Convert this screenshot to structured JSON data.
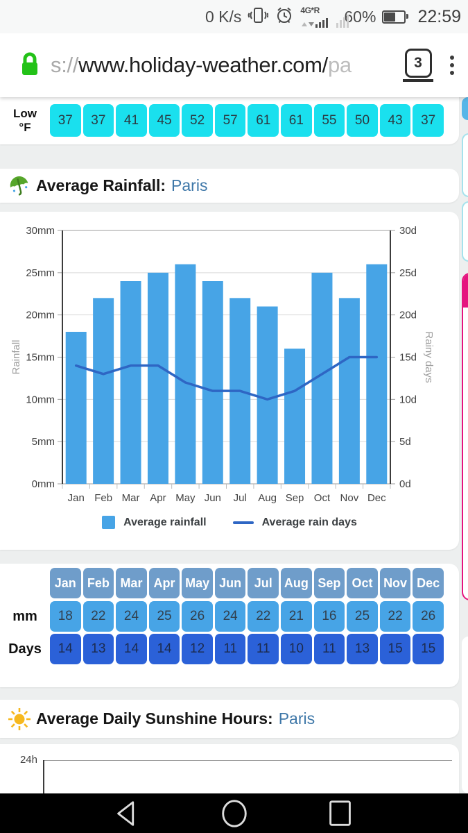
{
  "status_bar": {
    "network_speed": "0 K/s",
    "network_type_label": "4G*R",
    "battery_percent": "60%",
    "time": "22:59"
  },
  "address_bar": {
    "url_scheme_fragment": "s://",
    "url_host": "www.holiday-weather.com/",
    "url_path_fragment": "pa",
    "tab_count": "3"
  },
  "temp_table": {
    "row_label_top": "Low",
    "row_label_bottom": "°F",
    "values": [
      "37",
      "37",
      "41",
      "45",
      "52",
      "57",
      "61",
      "61",
      "55",
      "50",
      "43",
      "37"
    ]
  },
  "rainfall_section": {
    "title": "Average Rainfall:",
    "city": "Paris"
  },
  "chart_data": {
    "type": "bar",
    "categories": [
      "Jan",
      "Feb",
      "Mar",
      "Apr",
      "May",
      "Jun",
      "Jul",
      "Aug",
      "Sep",
      "Oct",
      "Nov",
      "Dec"
    ],
    "series": [
      {
        "name": "Average rainfall",
        "type": "bar",
        "unit": "mm",
        "color": "#47a4e6",
        "values": [
          18,
          22,
          24,
          25,
          26,
          24,
          22,
          21,
          16,
          25,
          22,
          26
        ]
      },
      {
        "name": "Average rain days",
        "type": "line",
        "unit": "days",
        "color": "#2e66c4",
        "values": [
          14,
          13,
          14,
          14,
          12,
          11,
          11,
          10,
          11,
          13,
          15,
          15
        ]
      }
    ],
    "left_axis": {
      "title": "Rainfall",
      "min": 0,
      "max": 30,
      "tick_step": 5,
      "tick_suffix": "mm"
    },
    "right_axis": {
      "title": "Rainy days",
      "min": 0,
      "max": 30,
      "tick_step": 5,
      "tick_suffix": "d"
    },
    "legend_position": "bottom",
    "grid": true
  },
  "rain_table": {
    "months": [
      "Jan",
      "Feb",
      "Mar",
      "Apr",
      "May",
      "Jun",
      "Jul",
      "Aug",
      "Sep",
      "Oct",
      "Nov",
      "Dec"
    ],
    "mm_label": "mm",
    "mm_values": [
      "18",
      "22",
      "24",
      "25",
      "26",
      "24",
      "22",
      "21",
      "16",
      "25",
      "22",
      "26"
    ],
    "days_label": "Days",
    "days_values": [
      "14",
      "13",
      "14",
      "14",
      "12",
      "11",
      "11",
      "10",
      "11",
      "13",
      "15",
      "15"
    ]
  },
  "sunshine_section": {
    "title": "Average Daily Sunshine Hours:",
    "city": "Paris",
    "first_axis_tick": "24h"
  },
  "colors": {
    "cyan_cell": "#1ae0ee",
    "table_header_blue": "#6f9dca",
    "mm_cell_blue": "#47a4e6",
    "days_cell_blue": "#2b61d8",
    "bar_blue": "#47a4e6",
    "line_blue": "#2e66c4",
    "link_blue": "#3e77a8",
    "magenta_accent": "#e5147f",
    "lock_green": "#23c218"
  }
}
